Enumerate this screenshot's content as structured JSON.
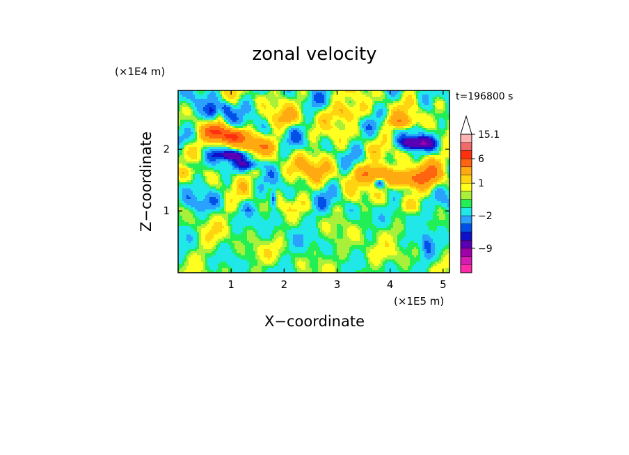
{
  "chart_data": {
    "type": "heatmap",
    "title": "zonal velocity",
    "xlabel": "X−coordinate",
    "ylabel": "Z−coordinate",
    "x_unit_label": "(×1E5 m)",
    "y_unit_label": "(×1E4 m)",
    "time_label": "t=196800 s",
    "xlim": [
      0,
      5.12
    ],
    "ylim": [
      0,
      2.95
    ],
    "x_ticks": [
      1,
      2,
      3,
      4,
      5
    ],
    "y_ticks": [
      1,
      2
    ],
    "x_tick_labels": [
      "1",
      "2",
      "3",
      "4",
      "5"
    ],
    "y_tick_labels": [
      "1",
      "2"
    ],
    "colorbar": {
      "levels": [
        {
          "value": -15,
          "color": "#ff2aa8"
        },
        {
          "value": -12,
          "color": "#d61ab4"
        },
        {
          "value": -9,
          "color": "#a000a8"
        },
        {
          "value": -6,
          "color": "#5a00b4"
        },
        {
          "value": -4,
          "color": "#1010c8"
        },
        {
          "value": -3,
          "color": "#0050e8"
        },
        {
          "value": -2,
          "color": "#2aa0ff"
        },
        {
          "value": -1,
          "color": "#20e8e8"
        },
        {
          "value": 0,
          "color": "#22ee55"
        },
        {
          "value": 0.5,
          "color": "#a8f03a"
        },
        {
          "value": 1,
          "color": "#ffff20"
        },
        {
          "value": 2,
          "color": "#ffd410"
        },
        {
          "value": 3,
          "color": "#ffaa10"
        },
        {
          "value": 6,
          "color": "#ff6410"
        },
        {
          "value": 9,
          "color": "#ff3010"
        },
        {
          "value": 12,
          "color": "#f06a6a"
        },
        {
          "value": 15.1,
          "color": "#ffb4b4"
        }
      ],
      "labels": [
        "15.1",
        "6",
        "1",
        "−2",
        "−9"
      ]
    }
  }
}
